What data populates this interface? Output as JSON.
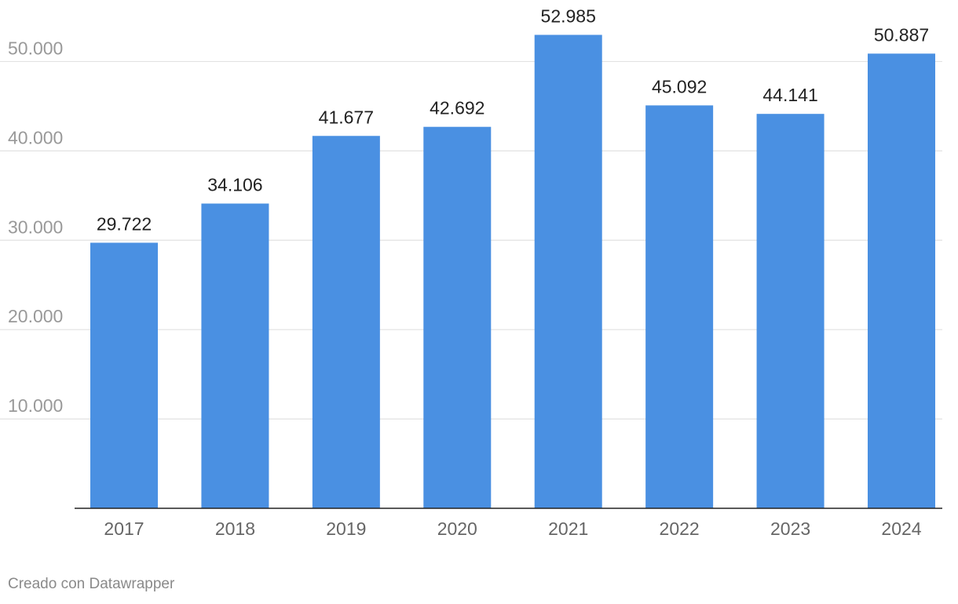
{
  "chart_data": {
    "type": "bar",
    "categories": [
      "2017",
      "2018",
      "2019",
      "2020",
      "2021",
      "2022",
      "2023",
      "2024"
    ],
    "values": [
      29722,
      34106,
      41677,
      42692,
      52985,
      45092,
      44141,
      50887
    ],
    "value_labels": [
      "29.722",
      "34.106",
      "41.677",
      "42.692",
      "52.985",
      "45.092",
      "44.141",
      "50.887"
    ],
    "yticks": [
      10000,
      20000,
      30000,
      40000,
      50000
    ],
    "ytick_labels": [
      "10.000",
      "20.000",
      "30.000",
      "40.000",
      "50.000"
    ],
    "ylim": [
      0,
      55000
    ],
    "grid": true,
    "bar_color": "#4a90e2",
    "title": "",
    "xlabel": "",
    "ylabel": ""
  },
  "footer": {
    "credit": "Creado con Datawrapper"
  }
}
